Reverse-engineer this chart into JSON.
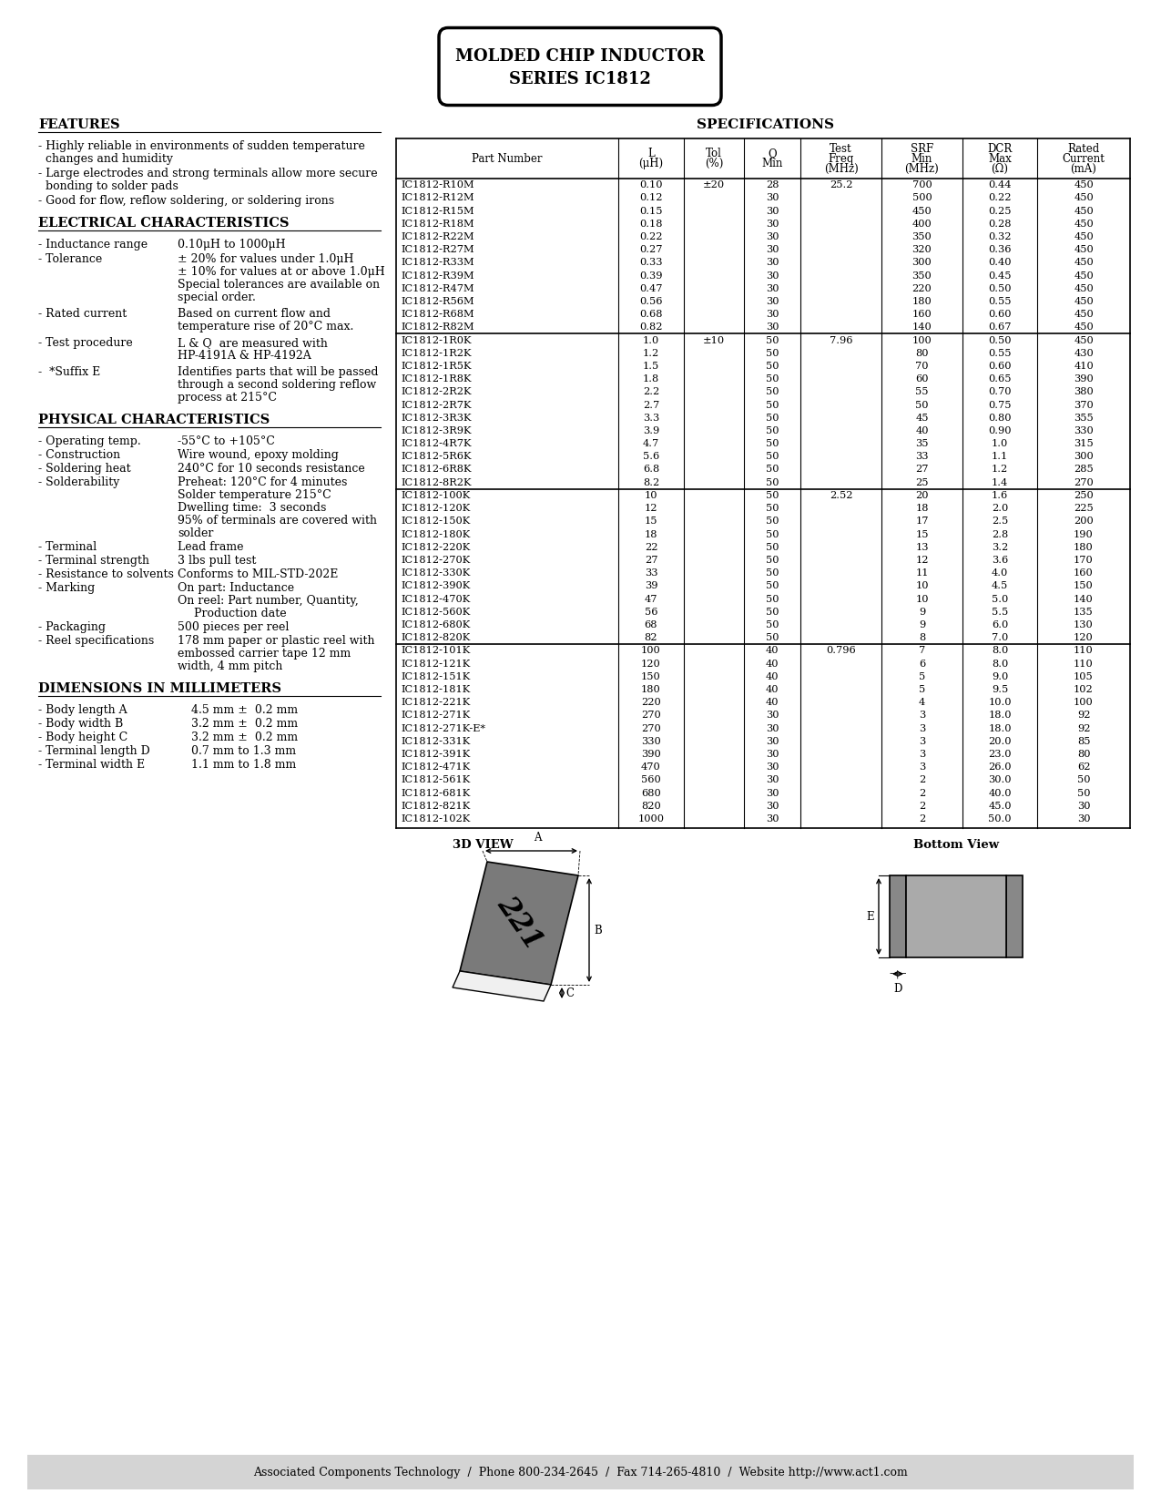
{
  "title_line1": "MOLDED CHIP INDUCTOR",
  "title_line2": "SERIES IC1812",
  "spec_title": "SPECIFICATIONS",
  "table_headers": [
    "Part Number",
    "L\n(μH)",
    "Tol\n(%)",
    "Q\nMin",
    "Test\nFreq\n(MHz)",
    "SRF\nMin\n(MHz)",
    "DCR\nMax\n(Ω)",
    "Rated\nCurrent\n(mA)"
  ],
  "table_data": [
    [
      "IC1812-R10M",
      "0.10",
      "±20",
      "28",
      "25.2",
      "700",
      "0.44",
      "450"
    ],
    [
      "IC1812-R12M",
      "0.12",
      "",
      "30",
      "",
      "500",
      "0.22",
      "450"
    ],
    [
      "IC1812-R15M",
      "0.15",
      "",
      "30",
      "",
      "450",
      "0.25",
      "450"
    ],
    [
      "IC1812-R18M",
      "0.18",
      "",
      "30",
      "",
      "400",
      "0.28",
      "450"
    ],
    [
      "IC1812-R22M",
      "0.22",
      "",
      "30",
      "",
      "350",
      "0.32",
      "450"
    ],
    [
      "IC1812-R27M",
      "0.27",
      "",
      "30",
      "",
      "320",
      "0.36",
      "450"
    ],
    [
      "IC1812-R33M",
      "0.33",
      "",
      "30",
      "",
      "300",
      "0.40",
      "450"
    ],
    [
      "IC1812-R39M",
      "0.39",
      "",
      "30",
      "",
      "350",
      "0.45",
      "450"
    ],
    [
      "IC1812-R47M",
      "0.47",
      "",
      "30",
      "",
      "220",
      "0.50",
      "450"
    ],
    [
      "IC1812-R56M",
      "0.56",
      "",
      "30",
      "",
      "180",
      "0.55",
      "450"
    ],
    [
      "IC1812-R68M",
      "0.68",
      "",
      "30",
      "",
      "160",
      "0.60",
      "450"
    ],
    [
      "IC1812-R82M",
      "0.82",
      "",
      "30",
      "",
      "140",
      "0.67",
      "450"
    ],
    [
      "IC1812-1R0K",
      "1.0",
      "±10",
      "50",
      "7.96",
      "100",
      "0.50",
      "450"
    ],
    [
      "IC1812-1R2K",
      "1.2",
      "",
      "50",
      "",
      "80",
      "0.55",
      "430"
    ],
    [
      "IC1812-1R5K",
      "1.5",
      "",
      "50",
      "",
      "70",
      "0.60",
      "410"
    ],
    [
      "IC1812-1R8K",
      "1.8",
      "",
      "50",
      "",
      "60",
      "0.65",
      "390"
    ],
    [
      "IC1812-2R2K",
      "2.2",
      "",
      "50",
      "",
      "55",
      "0.70",
      "380"
    ],
    [
      "IC1812-2R7K",
      "2.7",
      "",
      "50",
      "",
      "50",
      "0.75",
      "370"
    ],
    [
      "IC1812-3R3K",
      "3.3",
      "",
      "50",
      "",
      "45",
      "0.80",
      "355"
    ],
    [
      "IC1812-3R9K",
      "3.9",
      "",
      "50",
      "",
      "40",
      "0.90",
      "330"
    ],
    [
      "IC1812-4R7K",
      "4.7",
      "",
      "50",
      "",
      "35",
      "1.0",
      "315"
    ],
    [
      "IC1812-5R6K",
      "5.6",
      "",
      "50",
      "",
      "33",
      "1.1",
      "300"
    ],
    [
      "IC1812-6R8K",
      "6.8",
      "",
      "50",
      "",
      "27",
      "1.2",
      "285"
    ],
    [
      "IC1812-8R2K",
      "8.2",
      "",
      "50",
      "",
      "25",
      "1.4",
      "270"
    ],
    [
      "IC1812-100K",
      "10",
      "",
      "50",
      "2.52",
      "20",
      "1.6",
      "250"
    ],
    [
      "IC1812-120K",
      "12",
      "",
      "50",
      "",
      "18",
      "2.0",
      "225"
    ],
    [
      "IC1812-150K",
      "15",
      "",
      "50",
      "",
      "17",
      "2.5",
      "200"
    ],
    [
      "IC1812-180K",
      "18",
      "",
      "50",
      "",
      "15",
      "2.8",
      "190"
    ],
    [
      "IC1812-220K",
      "22",
      "",
      "50",
      "",
      "13",
      "3.2",
      "180"
    ],
    [
      "IC1812-270K",
      "27",
      "",
      "50",
      "",
      "12",
      "3.6",
      "170"
    ],
    [
      "IC1812-330K",
      "33",
      "",
      "50",
      "",
      "11",
      "4.0",
      "160"
    ],
    [
      "IC1812-390K",
      "39",
      "",
      "50",
      "",
      "10",
      "4.5",
      "150"
    ],
    [
      "IC1812-470K",
      "47",
      "",
      "50",
      "",
      "10",
      "5.0",
      "140"
    ],
    [
      "IC1812-560K",
      "56",
      "",
      "50",
      "",
      "9",
      "5.5",
      "135"
    ],
    [
      "IC1812-680K",
      "68",
      "",
      "50",
      "",
      "9",
      "6.0",
      "130"
    ],
    [
      "IC1812-820K",
      "82",
      "",
      "50",
      "",
      "8",
      "7.0",
      "120"
    ],
    [
      "IC1812-101K",
      "100",
      "",
      "40",
      "0.796",
      "7",
      "8.0",
      "110"
    ],
    [
      "IC1812-121K",
      "120",
      "",
      "40",
      "",
      "6",
      "8.0",
      "110"
    ],
    [
      "IC1812-151K",
      "150",
      "",
      "40",
      "",
      "5",
      "9.0",
      "105"
    ],
    [
      "IC1812-181K",
      "180",
      "",
      "40",
      "",
      "5",
      "9.5",
      "102"
    ],
    [
      "IC1812-221K",
      "220",
      "",
      "40",
      "",
      "4",
      "10.0",
      "100"
    ],
    [
      "IC1812-271K",
      "270",
      "",
      "30",
      "",
      "3",
      "18.0",
      "92"
    ],
    [
      "IC1812-271K-E*",
      "270",
      "",
      "30",
      "",
      "3",
      "18.0",
      "92"
    ],
    [
      "IC1812-331K",
      "330",
      "",
      "30",
      "",
      "3",
      "20.0",
      "85"
    ],
    [
      "IC1812-391K",
      "390",
      "",
      "30",
      "",
      "3",
      "23.0",
      "80"
    ],
    [
      "IC1812-471K",
      "470",
      "",
      "30",
      "",
      "3",
      "26.0",
      "62"
    ],
    [
      "IC1812-561K",
      "560",
      "",
      "30",
      "",
      "2",
      "30.0",
      "50"
    ],
    [
      "IC1812-681K",
      "680",
      "",
      "30",
      "",
      "2",
      "40.0",
      "50"
    ],
    [
      "IC1812-821K",
      "820",
      "",
      "30",
      "",
      "2",
      "45.0",
      "30"
    ],
    [
      "IC1812-102K",
      "1000",
      "",
      "30",
      "",
      "2",
      "50.0",
      "30"
    ]
  ],
  "group_breaks": [
    12,
    24,
    36
  ],
  "footer": "Associated Components Technology  /  Phone 800-234-2645  /  Fax 714-265-4810  /  Website http://www.act1.com",
  "footer_bg": "#d8d8d8"
}
